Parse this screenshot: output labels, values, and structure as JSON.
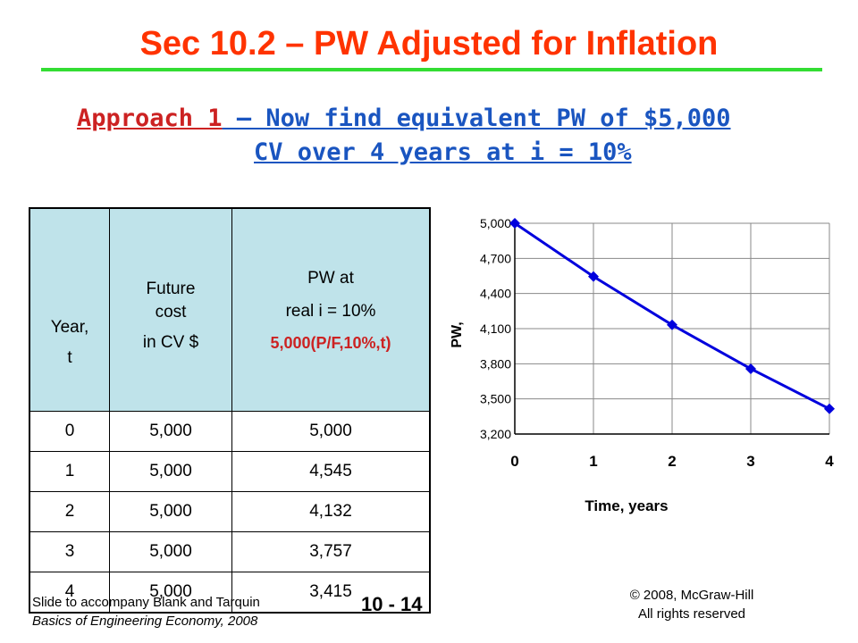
{
  "slide": {
    "title": "Sec 10.2 – PW Adjusted for Inflation",
    "approach_red": "Approach 1",
    "approach_line1_rest": " – Now find equivalent PW of $5,000",
    "approach_line2": "CV over 4 years at i = 10%"
  },
  "table": {
    "header_year_l1": "Year,",
    "header_year_l2": "t",
    "header_cost_l1": "Future",
    "header_cost_l2": "cost",
    "header_cost_l3": "in CV $",
    "header_pw_l1": "PW at",
    "header_pw_l2": "real i = 10%",
    "header_pw_l3": "5,000(P/F,10%,t)",
    "rows": [
      {
        "year": "0",
        "cost": "5,000",
        "pw": "5,000"
      },
      {
        "year": "1",
        "cost": "5,000",
        "pw": "4,545"
      },
      {
        "year": "2",
        "cost": "5,000",
        "pw": "4,132"
      },
      {
        "year": "3",
        "cost": "5,000",
        "pw": "3,757"
      },
      {
        "year": "4",
        "cost": "5,000",
        "pw": "3,415"
      }
    ]
  },
  "chart_data": {
    "type": "line",
    "x": [
      0,
      1,
      2,
      3,
      4
    ],
    "series": [
      {
        "values": [
          5000,
          4545,
          4132,
          3757,
          3415
        ],
        "color": "#0000dd"
      }
    ],
    "xlabel": "Time, years",
    "ylabel": "PW,",
    "x_ticks": [
      "0",
      "1",
      "2",
      "3",
      "4"
    ],
    "y_ticks": [
      "3,200",
      "3,500",
      "3,800",
      "4,100",
      "4,400",
      "4,700",
      "5,000"
    ],
    "y_tick_values": [
      3200,
      3500,
      3800,
      4100,
      4400,
      4700,
      5000
    ],
    "xlim": [
      0,
      4
    ],
    "ylim": [
      3200,
      5000
    ],
    "grid": true,
    "legend": "none"
  },
  "footer": {
    "left_l1": "Slide to accompany Blank and Tarquin",
    "left_l2": "Basics of Engineering Economy, 2008",
    "center": "10 - 14",
    "right_l1": "© 2008, McGraw-Hill",
    "right_l2": "All rights reserved"
  }
}
